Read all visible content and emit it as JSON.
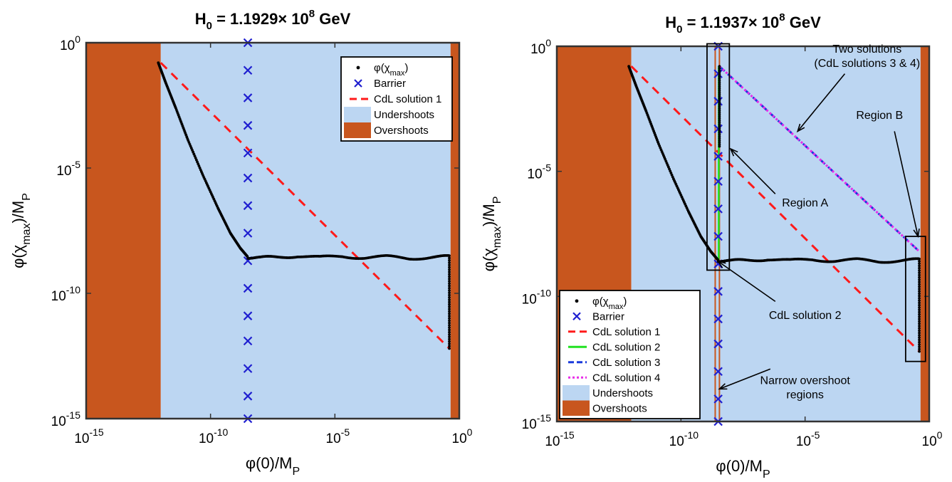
{
  "colors": {
    "undershoot": "#bcd6f2",
    "overshoot": "#c8561e",
    "barrier": "#1f1fd0",
    "cdl1": "#ff1a1a",
    "cdl2": "#21e221",
    "cdl3": "#1a3adc",
    "cdl4": "#e82ee8",
    "phi": "#000000",
    "frame": "#333333"
  },
  "chart_data": [
    {
      "type": "scatter",
      "title": "H<sub>0</sub> = 1.1929× 10<sup>8</sup> GeV",
      "title_parts": {
        "main": "H",
        "sub": "0",
        "mid": " = 1.1929× 10",
        "sup": "8",
        "end": " GeV"
      },
      "xlabel": "φ(0)/M_P",
      "ylabel": "φ(χ_max)/M_P",
      "xscale": "log",
      "yscale": "log",
      "xlim": [
        1e-15,
        1
      ],
      "ylim": [
        1e-15,
        1
      ],
      "xticks": {
        "base": "10",
        "exps": [
          "-15",
          "-10",
          "-5",
          "0"
        ]
      },
      "yticks": {
        "base": "10",
        "exps": [
          "-15",
          "-10",
          "-5",
          "0"
        ]
      },
      "legend_position": "top-right",
      "legend": [
        {
          "key": "phi",
          "label": "φ(χ_max)"
        },
        {
          "key": "barrier",
          "label": "Barrier"
        },
        {
          "key": "cdl1",
          "label": "CdL solution 1"
        },
        {
          "key": "undershoot",
          "label": "Undershoots"
        },
        {
          "key": "overshoot",
          "label": "Overshoots"
        }
      ],
      "regions": [
        {
          "kind": "overshoot",
          "x": [
            -15,
            -12
          ]
        },
        {
          "kind": "undershoot",
          "x": [
            -12,
            -0.35
          ]
        },
        {
          "kind": "overshoot",
          "x": [
            -0.35,
            0
          ]
        }
      ],
      "barrier_x": -8.5,
      "barrier_y": [
        0,
        -1.1,
        -2.2,
        -3.3,
        -4.4,
        -5.4,
        -6.5,
        -7.6,
        -8.7,
        -9.8,
        -10.9,
        -11.9,
        -13,
        -14.1,
        -15
      ],
      "phi_curve": [
        [
          -12.1,
          -0.8
        ],
        [
          -11.8,
          -1.6
        ],
        [
          -11.4,
          -2.6
        ],
        [
          -10.9,
          -3.9
        ],
        [
          -10.3,
          -5.3
        ],
        [
          -9.7,
          -6.6
        ],
        [
          -9.2,
          -7.6
        ],
        [
          -8.8,
          -8.2
        ],
        [
          -8.5,
          -8.55
        ],
        [
          -8.0,
          -8.6
        ],
        [
          -7.3,
          -8.55
        ],
        [
          -6.5,
          -8.5
        ],
        [
          -5.6,
          -8.58
        ],
        [
          -4.7,
          -8.52
        ],
        [
          -3.8,
          -8.57
        ],
        [
          -2.9,
          -8.55
        ],
        [
          -2.0,
          -8.6
        ],
        [
          -1.1,
          -8.55
        ],
        [
          -0.4,
          -8.55
        ]
      ],
      "phi_vertical": {
        "x": -0.4,
        "y": [
          -8.5,
          -12.2
        ]
      },
      "cdl_lines": [
        {
          "key": "cdl1",
          "from": [
            -12.0,
            -0.8
          ],
          "to": [
            -0.4,
            -12.2
          ]
        }
      ],
      "annotations": []
    },
    {
      "type": "scatter",
      "title_parts": {
        "main": "H",
        "sub": "0",
        "mid": " = 1.1937× 10",
        "sup": "8",
        "end": " GeV"
      },
      "xlabel": "φ(0)/M_P",
      "ylabel": "φ(χ_max)/M_P",
      "xscale": "log",
      "yscale": "log",
      "xlim": [
        1e-15,
        1
      ],
      "ylim": [
        1e-15,
        1
      ],
      "xticks": {
        "base": "10",
        "exps": [
          "-15",
          "-10",
          "-5",
          "0"
        ]
      },
      "yticks": {
        "base": "10",
        "exps": [
          "-15",
          "-10",
          "-5",
          "0"
        ]
      },
      "legend_position": "bottom-left",
      "legend": [
        {
          "key": "phi",
          "label": "φ(χ_max)"
        },
        {
          "key": "barrier",
          "label": "Barrier"
        },
        {
          "key": "cdl1",
          "label": "CdL solution 1"
        },
        {
          "key": "cdl2",
          "label": "CdL solution 2"
        },
        {
          "key": "cdl3",
          "label": "CdL solution 3"
        },
        {
          "key": "cdl4",
          "label": "CdL solution 4"
        },
        {
          "key": "undershoot",
          "label": "Undershoots"
        },
        {
          "key": "overshoot",
          "label": "Overshoots"
        }
      ],
      "regions": [
        {
          "kind": "overshoot",
          "x": [
            -15,
            -12
          ]
        },
        {
          "kind": "undershoot",
          "x": [
            -12,
            -0.35
          ]
        },
        {
          "kind": "overshoot",
          "x": [
            -0.35,
            0
          ]
        }
      ],
      "narrow_overshoots": [
        -8.62,
        -8.45
      ],
      "barrier_x": -8.5,
      "barrier_y": [
        0,
        -1.1,
        -2.2,
        -3.3,
        -4.4,
        -5.4,
        -6.5,
        -7.6,
        -8.7,
        -9.8,
        -10.9,
        -11.9,
        -13,
        -14.1,
        -15
      ],
      "phi_curve": [
        [
          -12.1,
          -0.8
        ],
        [
          -11.8,
          -1.6
        ],
        [
          -11.4,
          -2.6
        ],
        [
          -10.9,
          -3.9
        ],
        [
          -10.3,
          -5.3
        ],
        [
          -9.7,
          -6.6
        ],
        [
          -9.2,
          -7.6
        ],
        [
          -8.8,
          -8.2
        ],
        [
          -8.5,
          -8.55
        ],
        [
          -8.0,
          -8.6
        ],
        [
          -7.3,
          -8.55
        ],
        [
          -6.5,
          -8.5
        ],
        [
          -5.6,
          -8.58
        ],
        [
          -4.7,
          -8.52
        ],
        [
          -3.8,
          -8.57
        ],
        [
          -2.9,
          -8.55
        ],
        [
          -2.0,
          -8.6
        ],
        [
          -1.1,
          -8.55
        ],
        [
          -0.4,
          -8.55
        ]
      ],
      "phi_vertical": {
        "x": -0.4,
        "y": [
          -8.5,
          -12.2
        ]
      },
      "phi_vertical_2": {
        "x": -8.45,
        "y": [
          -0.8,
          -4.0
        ]
      },
      "cdl_lines": [
        {
          "key": "cdl1",
          "from": [
            -12.0,
            -0.8
          ],
          "to": [
            -0.4,
            -12.2
          ]
        },
        {
          "key": "cdl2",
          "from": [
            -8.48,
            -0.8
          ],
          "to": [
            -8.48,
            -8.55
          ]
        },
        {
          "key": "cdl3",
          "from": [
            -8.45,
            -0.8
          ],
          "to": [
            -0.4,
            -8.2
          ]
        },
        {
          "key": "cdl4",
          "from": [
            -8.45,
            -0.8
          ],
          "to": [
            -0.4,
            -8.2
          ]
        }
      ],
      "boxes": [
        {
          "x": [
            -8.95,
            -8.05
          ],
          "y": [
            0.1,
            -8.95
          ]
        },
        {
          "x": [
            -0.95,
            -0.15
          ],
          "y": [
            -7.6,
            -12.6
          ]
        }
      ],
      "annotations": [
        {
          "lines": [
            "Two solutions",
            "(CdL solutions 3 & 4)"
          ],
          "text_at": [
            -2.5,
            -0.25
          ],
          "arrow_from": [
            -3.4,
            -1.1
          ],
          "arrow_to": [
            -5.3,
            -3.4
          ]
        },
        {
          "lines": [
            "Region B"
          ],
          "text_at": [
            -2.0,
            -2.9
          ],
          "arrow_from": [
            -1.4,
            -3.4
          ],
          "arrow_to": [
            -0.45,
            -7.6
          ]
        },
        {
          "lines": [
            "Region A"
          ],
          "text_at": [
            -5.0,
            -6.4
          ],
          "arrow_from": [
            -6.2,
            -5.9
          ],
          "arrow_to": [
            -8.0,
            -4.1
          ]
        },
        {
          "lines": [
            "CdL solution 2"
          ],
          "text_at": [
            -5.0,
            -10.9
          ],
          "arrow_from": [
            -6.2,
            -10.2
          ],
          "arrow_to": [
            -8.5,
            -8.6
          ]
        },
        {
          "lines": [
            "Narrow overshoot",
            "regions"
          ],
          "text_at": [
            -5.0,
            -13.5
          ],
          "arrow_from": [
            -6.4,
            -12.9
          ],
          "arrow_to": [
            -8.45,
            -13.7
          ]
        }
      ]
    }
  ]
}
